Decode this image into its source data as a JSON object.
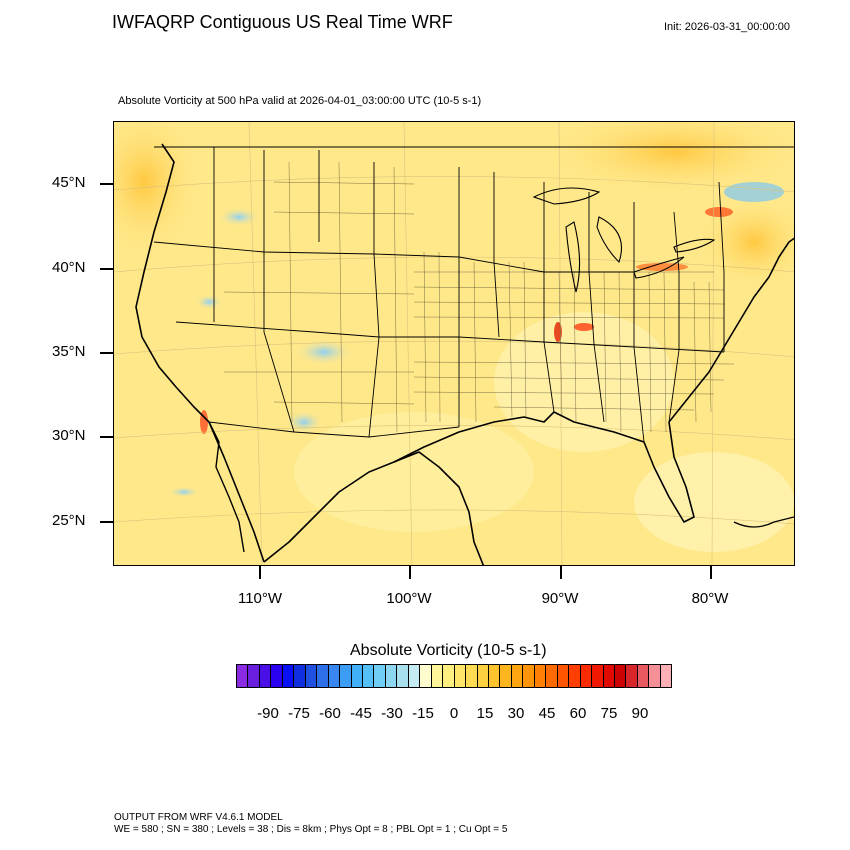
{
  "header": {
    "title": "IWFAQRP Contiguous US Real Time WRF",
    "init": "Init: 2026-03-31_00:00:00",
    "field_title": "Absolute Vorticity at 500 hPa valid at 2026-04-01_03:00:00 UTC   (10-5 s-1)"
  },
  "map": {
    "lat_labels": [
      "45°N",
      "40°N",
      "35°N",
      "30°N",
      "25°N"
    ],
    "lon_labels": [
      "110°W",
      "100°W",
      "90°W",
      "80°W"
    ],
    "background_color": "#ffe88a",
    "coastline_color": "#000000"
  },
  "colorbar": {
    "title": "Absolute Vorticity  (10-5 s-1)",
    "labels": [
      "-90",
      "-75",
      "-60",
      "-45",
      "-30",
      "-15",
      "0",
      "15",
      "30",
      "45",
      "60",
      "75",
      "90"
    ],
    "colors": [
      "#8a2be2",
      "#6a1fe0",
      "#4b10e8",
      "#2a00f0",
      "#0a10f5",
      "#1030e0",
      "#2050e0",
      "#2e6ee8",
      "#3a86f0",
      "#3d9cf5",
      "#40b0f8",
      "#55c0f8",
      "#6fcdf6",
      "#8cd6f2",
      "#a8e0ee",
      "#c4ecf2",
      "#fffcd0",
      "#fff49a",
      "#ffee80",
      "#ffe66a",
      "#ffdc54",
      "#ffd040",
      "#ffc32e",
      "#ffb51e",
      "#ffa510",
      "#ff9408",
      "#ff8004",
      "#ff6a02",
      "#ff5400",
      "#ff3e00",
      "#fb2a00",
      "#f01800",
      "#e00a00",
      "#cc0300",
      "#d9262a",
      "#e85a60",
      "#f59096",
      "#ffb0b4"
    ]
  },
  "footer": {
    "line1": "OUTPUT FROM WRF V4.6.1 MODEL",
    "line2": "WE = 580 ; SN = 380 ; Levels = 38 ; Dis = 8km ; Phys Opt = 8 ; PBL Opt = 1 ; Cu Opt = 5"
  }
}
